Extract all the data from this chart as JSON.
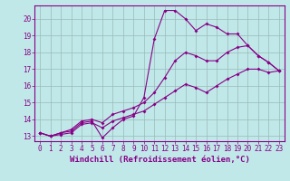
{
  "background_color": "#c0e8e8",
  "grid_color": "#9ababa",
  "line_color": "#880088",
  "marker": "D",
  "marker_size": 2.0,
  "line_width": 0.8,
  "xlabel": "Windchill (Refroidissement éolien,°C)",
  "xlabel_fontsize": 6.5,
  "tick_fontsize": 5.5,
  "xlim": [
    -0.5,
    23.5
  ],
  "ylim": [
    12.7,
    20.8
  ],
  "yticks": [
    13,
    14,
    15,
    16,
    17,
    18,
    19,
    20
  ],
  "xticks": [
    0,
    1,
    2,
    3,
    4,
    5,
    6,
    7,
    8,
    9,
    10,
    11,
    12,
    13,
    14,
    15,
    16,
    17,
    18,
    19,
    20,
    21,
    22,
    23
  ],
  "series": [
    {
      "x": [
        0,
        1,
        2,
        3,
        4,
        5,
        6,
        7,
        8,
        9,
        10,
        11,
        12,
        13,
        14,
        15,
        16,
        17,
        18,
        19,
        20,
        21,
        22,
        23
      ],
      "y": [
        13.2,
        13.0,
        13.2,
        13.3,
        13.8,
        13.9,
        12.9,
        13.5,
        14.0,
        14.2,
        15.3,
        18.8,
        20.5,
        20.5,
        20.0,
        19.3,
        19.7,
        19.5,
        19.1,
        19.1,
        18.4,
        17.8,
        17.4,
        16.9
      ]
    },
    {
      "x": [
        0,
        1,
        2,
        3,
        4,
        5,
        6,
        7,
        8,
        9,
        10,
        11,
        12,
        13,
        14,
        15,
        16,
        17,
        18,
        19,
        20,
        21,
        22,
        23
      ],
      "y": [
        13.2,
        13.0,
        13.2,
        13.4,
        13.9,
        14.0,
        13.8,
        14.3,
        14.5,
        14.7,
        15.0,
        15.6,
        16.5,
        17.5,
        18.0,
        17.8,
        17.5,
        17.5,
        18.0,
        18.3,
        18.4,
        17.8,
        17.4,
        16.9
      ]
    },
    {
      "x": [
        0,
        1,
        2,
        3,
        4,
        5,
        6,
        7,
        8,
        9,
        10,
        11,
        12,
        13,
        14,
        15,
        16,
        17,
        18,
        19,
        20,
        21,
        22,
        23
      ],
      "y": [
        13.2,
        13.0,
        13.1,
        13.2,
        13.7,
        13.8,
        13.5,
        13.9,
        14.1,
        14.3,
        14.5,
        14.9,
        15.3,
        15.7,
        16.1,
        15.9,
        15.6,
        16.0,
        16.4,
        16.7,
        17.0,
        17.0,
        16.8,
        16.9
      ]
    }
  ]
}
